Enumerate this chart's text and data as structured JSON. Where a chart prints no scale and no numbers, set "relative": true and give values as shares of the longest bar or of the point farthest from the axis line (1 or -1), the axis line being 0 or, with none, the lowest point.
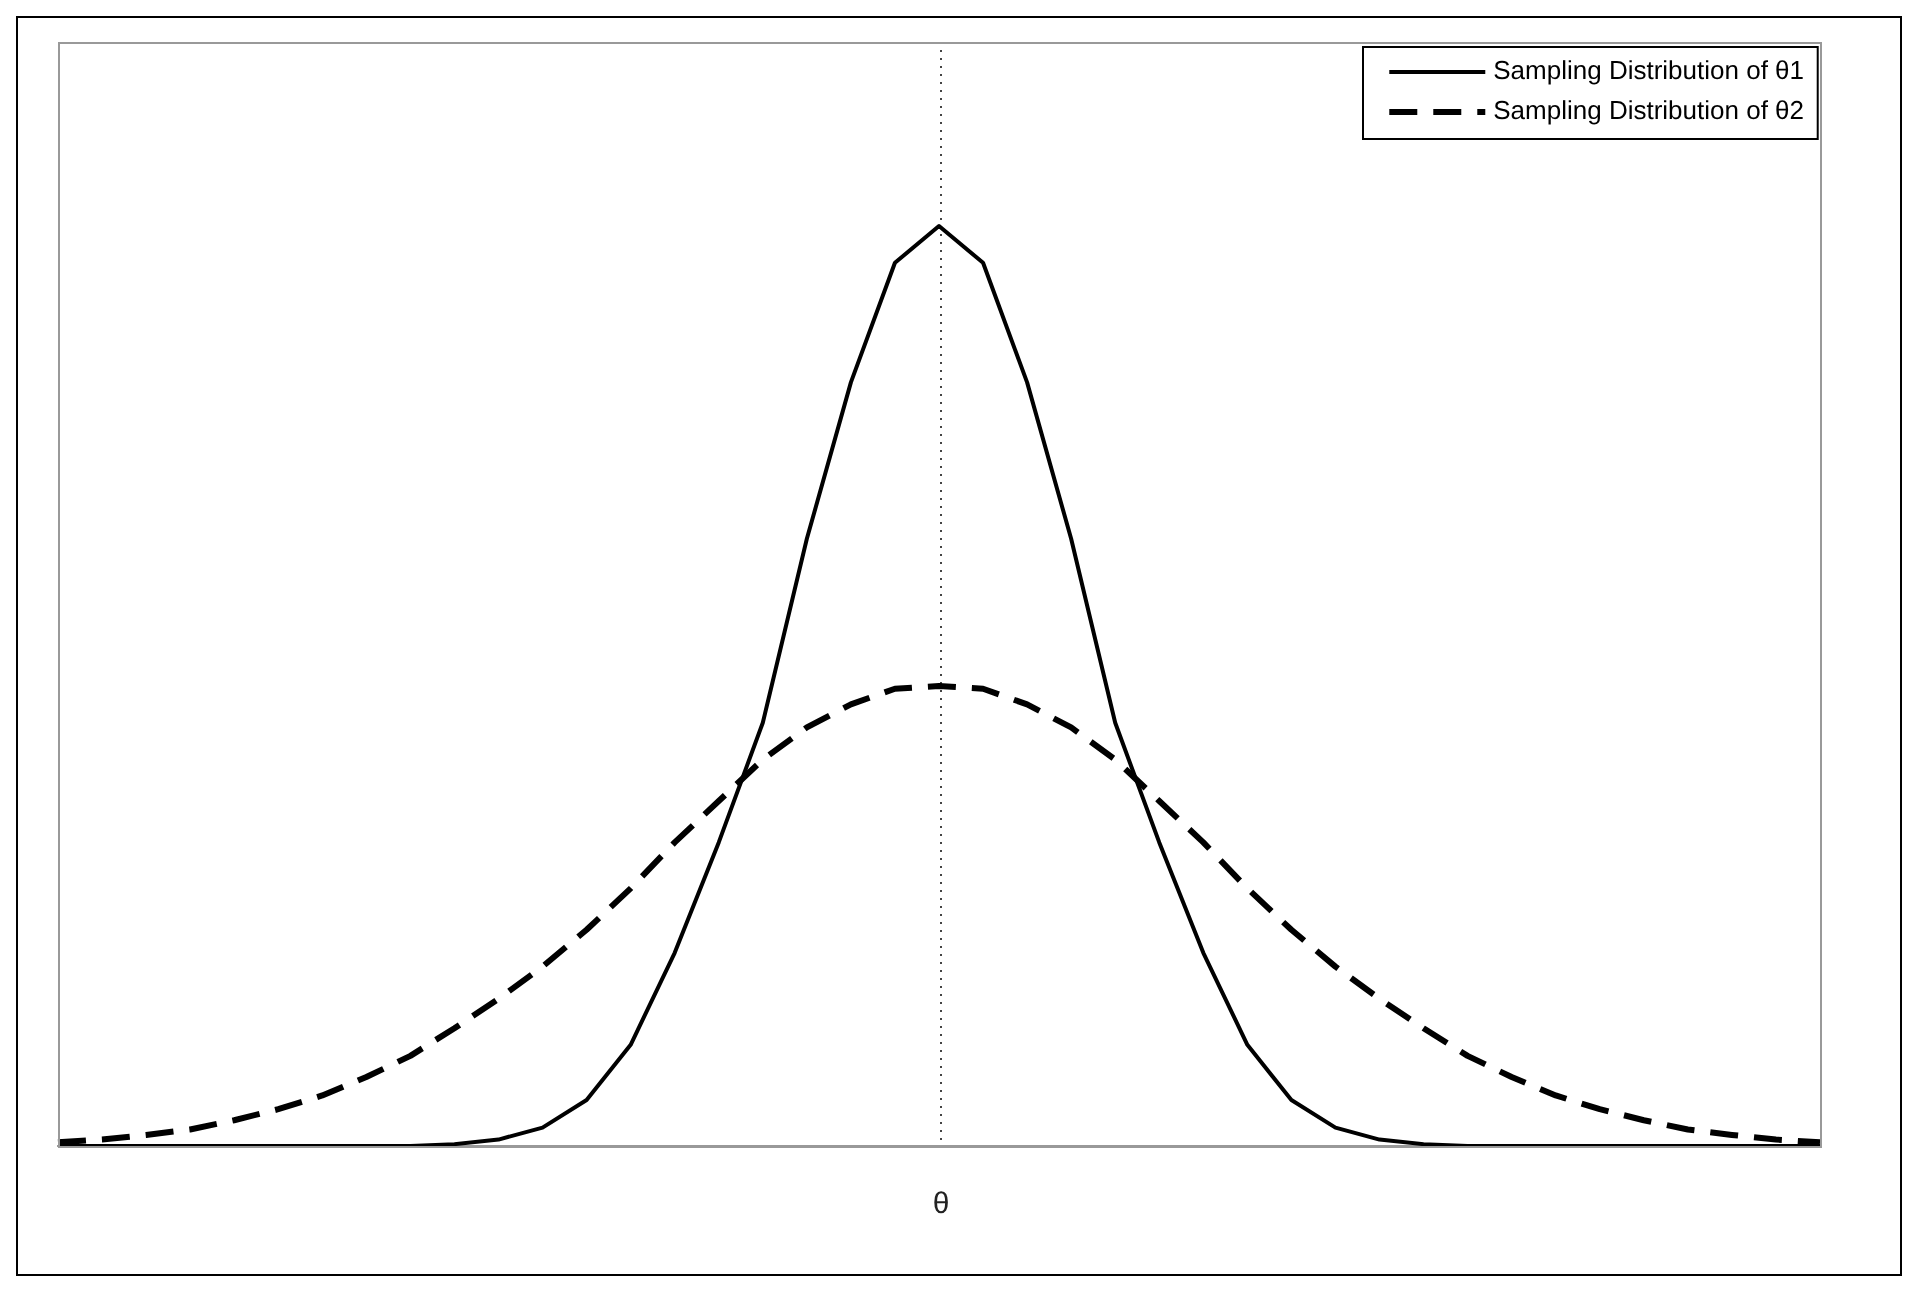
{
  "chart_data": {
    "type": "line",
    "relative": true,
    "categories": [
      null,
      null,
      null,
      null,
      null,
      null,
      null,
      null,
      null,
      null,
      null,
      null,
      null,
      null,
      null,
      null,
      null,
      null,
      null,
      null,
      null,
      null,
      null,
      null,
      null,
      null,
      null,
      null,
      null,
      null,
      null,
      null,
      null,
      null,
      null,
      null,
      null,
      null,
      null,
      null,
      null
    ],
    "series": [
      {
        "name": "Sampling Distribution of θ1",
        "color": "#000000",
        "line_style": "solid",
        "values": [
          0,
          0,
          0,
          0,
          0,
          0,
          0,
          0,
          0,
          0.002,
          0.007,
          0.02,
          0.05,
          0.11,
          0.21,
          0.33,
          0.46,
          0.66,
          0.83,
          0.96,
          1,
          0.96,
          0.83,
          0.66,
          0.46,
          0.33,
          0.21,
          0.11,
          0.05,
          0.02,
          0.007,
          0.002,
          0,
          0,
          0,
          0,
          0,
          0,
          0,
          0,
          0
        ]
      },
      {
        "name": "Sampling Distribution of θ2",
        "color": "#000000",
        "line_style": "dashed",
        "values": [
          0.004,
          0.007,
          0.012,
          0.018,
          0.028,
          0.04,
          0.055,
          0.075,
          0.098,
          0.128,
          0.16,
          0.195,
          0.235,
          0.28,
          0.33,
          0.375,
          0.42,
          0.455,
          0.48,
          0.497,
          0.5,
          0.497,
          0.48,
          0.455,
          0.42,
          0.375,
          0.33,
          0.28,
          0.235,
          0.195,
          0.16,
          0.128,
          0.098,
          0.075,
          0.055,
          0.04,
          0.028,
          0.018,
          0.012,
          0.007,
          0.004
        ]
      }
    ],
    "ref_lines": [
      {
        "axis": "x",
        "label": "θ",
        "color": "#444444",
        "line_style": "dotted"
      }
    ],
    "legend": "top right",
    "grid": false,
    "marker": "none"
  }
}
